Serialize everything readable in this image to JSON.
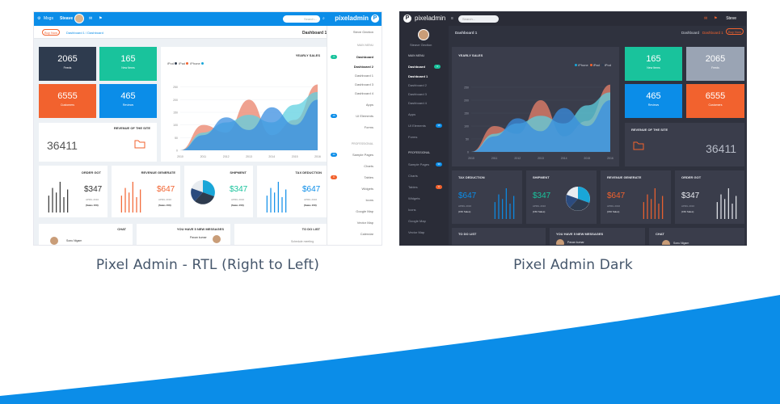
{
  "captions": {
    "left": "Pixel Admin - RTL (Right to Left)",
    "right": "Pixel Admin Dark"
  },
  "colors": {
    "primary_blue": "#0b8de8",
    "green": "#19c39c",
    "orange": "#f2622e",
    "navy": "#2e3b4e",
    "dark_bg": "#2f323e",
    "dark_card": "#3a3d4b"
  },
  "rtl": {
    "topbar": {
      "msgs": "Msgs",
      "user": "Steave",
      "search_placeholder": "Search...",
      "logo": "pixeladmin"
    },
    "buy_now": "Buy Now",
    "breadcrumb": "Dashboard 1 / Dashboard",
    "page_title": "Dashboard 1",
    "sidebar": {
      "user": "Steve Gection",
      "main_menu": "MAIN MENU",
      "dashboard": "Dashboard",
      "dashboard_badge": "4",
      "dashboard_items": [
        "Dashboard 2",
        "Dashboard 1",
        "Dashboard 3",
        "Dashboard 4"
      ],
      "apps": "Apps",
      "ui_elements": "UI Elements",
      "ui_elements_badge": "16",
      "forms": "Forms",
      "professional": "PROFESSIONAL",
      "sample_pages": "Sample Pages",
      "sample_pages_badge": "30",
      "charts": "Charts",
      "tables": "Tables",
      "tables_badge": "9",
      "widgets": "Widgets",
      "icons": "Icons",
      "google_map": "Google Map",
      "vector_map": "Vector Map",
      "calendar": "Calendar"
    },
    "stats": [
      {
        "value": "2065",
        "label": "Feeds"
      },
      {
        "value": "165",
        "label": "New Items"
      },
      {
        "value": "6555",
        "label": "Customers"
      },
      {
        "value": "465",
        "label": "Reviews"
      }
    ],
    "yearly_sales": {
      "title": "YEARLY SALES",
      "legend": [
        "iPod",
        "iPad",
        "iPhone"
      ]
    },
    "revenue": {
      "title": "REVENUE OF THE SITE",
      "value": "36411"
    },
    "minis": [
      {
        "title": "ORDER GOT",
        "value": "$347",
        "date": "APRIL 2016",
        "sales": "(Sales 150)"
      },
      {
        "title": "REVENUE GENERATE",
        "value": "$647",
        "date": "APRIL 2016",
        "sales": "(Sales 150)"
      },
      {
        "title": "SHIPMENT",
        "value": "$347",
        "date": "APRIL 2016",
        "sales": "(Sales 150)"
      },
      {
        "title": "TAX DEDUCTION",
        "value": "$647",
        "date": "APRIL 2016",
        "sales": "(Sales 150)"
      }
    ],
    "bottom": {
      "chat": "CHAT",
      "chat_name": "Sonu Nigam",
      "messages": "YOU HAVE 5 NEW MESSAGES",
      "messages_name": "Pavan kumar",
      "todo": "TO DO LIST",
      "todo_item": "Schedule meeting"
    }
  },
  "dark": {
    "topbar": {
      "logo": "pixeladmin",
      "search_placeholder": "Search...",
      "user": "Steve"
    },
    "user": "Steave Gection",
    "page_title": "Dashboard 1",
    "breadcrumb_home": "Dashboard",
    "breadcrumb_current": "Dashboard 1",
    "buy_now": "Buy Now",
    "sidebar": {
      "main_menu": "MAIN MENU",
      "dashboard": "Dashboard",
      "dashboard_badge": "4",
      "dashboard_items": [
        "Dashboard 1",
        "Dashboard 2",
        "Dashboard 3",
        "Dashboard 4"
      ],
      "apps": "Apps",
      "ui_elements": "UI Elements",
      "ui_elements_badge": "16",
      "forms": "Forms",
      "professional": "PROFESSIONAL",
      "sample_pages": "Sample Pages",
      "sample_pages_badge": "30",
      "charts": "Charts",
      "tables": "Tables",
      "tables_badge": "9",
      "widgets": "Widgets",
      "icons": "Icons",
      "google_map": "Google Map",
      "vector_map": "Vector Map"
    },
    "stats": [
      {
        "value": "165",
        "label": "New Items"
      },
      {
        "value": "2065",
        "label": "Feeds"
      },
      {
        "value": "465",
        "label": "Reviews"
      },
      {
        "value": "6555",
        "label": "Customers"
      }
    ],
    "yearly_sales": {
      "title": "YEARLY SALES",
      "legend": [
        "iPhone",
        "iPad",
        "iPod"
      ]
    },
    "revenue": {
      "title": "REVENUE OF THE SITE",
      "value": "36411"
    },
    "minis": [
      {
        "title": "TAX DEDUCTION",
        "value": "$647",
        "date": "APRIL 2016",
        "sales": "(150 Sales)"
      },
      {
        "title": "SHIPMENT",
        "value": "$347",
        "date": "APRIL 2016",
        "sales": "(150 Sales)"
      },
      {
        "title": "REVENUE GENERATE",
        "value": "$647",
        "date": "APRIL 2016",
        "sales": "(150 Sales)"
      },
      {
        "title": "ORDER GOT",
        "value": "$347",
        "date": "APRIL 2016",
        "sales": "(150 Sales)"
      }
    ],
    "bottom": {
      "todo": "TO DO LIST",
      "messages": "YOU HAVE 5 NEW MESSAGES",
      "messages_name": "Pavan kumar",
      "chat": "CHAT",
      "chat_name": "Sonu Nigam"
    }
  },
  "chart_data": [
    {
      "type": "area",
      "title": "YEARLY SALES",
      "x": [
        "2010",
        "2011",
        "2012",
        "2013",
        "2014",
        "2015",
        "2016"
      ],
      "ylim": [
        0,
        300
      ],
      "yticks": [
        "0",
        "50",
        "100",
        "150",
        "200",
        "250"
      ],
      "series": [
        {
          "name": "iPod",
          "values": [
            0,
            100,
            70,
            200,
            60,
            120,
            260
          ]
        },
        {
          "name": "iPad",
          "values": [
            0,
            70,
            110,
            140,
            110,
            180,
            230
          ]
        },
        {
          "name": "iPhone",
          "values": [
            0,
            60,
            130,
            80,
            170,
            100,
            200
          ]
        }
      ]
    }
  ]
}
